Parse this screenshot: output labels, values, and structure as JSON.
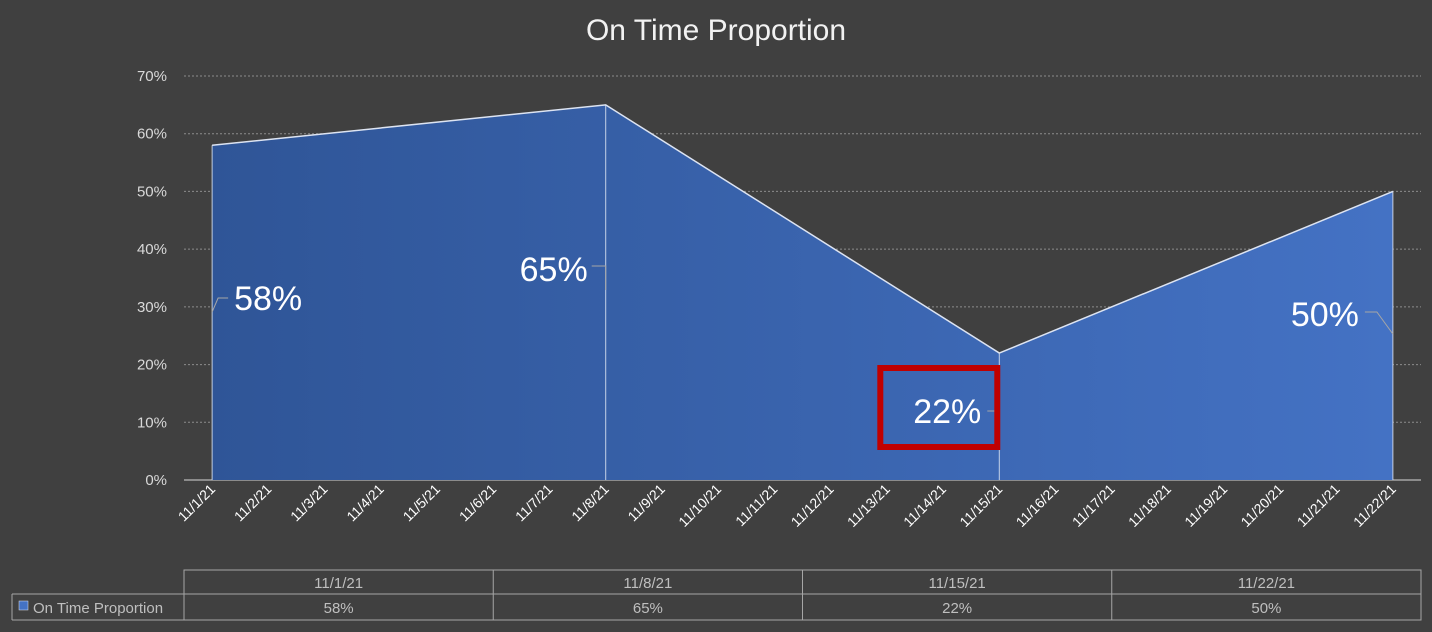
{
  "chart_data": {
    "type": "area",
    "title": "On Time Proportion",
    "xlabel": "",
    "ylabel": "",
    "x": [
      "11/1/21",
      "11/2/21",
      "11/3/21",
      "11/4/21",
      "11/5/21",
      "11/6/21",
      "11/7/21",
      "11/8/21",
      "11/9/21",
      "11/10/21",
      "11/11/21",
      "11/12/21",
      "11/13/21",
      "11/14/21",
      "11/15/21",
      "11/16/21",
      "11/17/21",
      "11/18/21",
      "11/19/21",
      "11/20/21",
      "11/21/21",
      "11/22/21"
    ],
    "series": [
      {
        "name": "On Time Proportion",
        "points": [
          {
            "x": "11/1/21",
            "y": 0.58,
            "label": "58%"
          },
          {
            "x": "11/8/21",
            "y": 0.65,
            "label": "65%"
          },
          {
            "x": "11/15/21",
            "y": 0.22,
            "label": "22%"
          },
          {
            "x": "11/22/21",
            "y": 0.5,
            "label": "50%"
          }
        ]
      }
    ],
    "y_ticks": [
      "0%",
      "10%",
      "20%",
      "30%",
      "40%",
      "50%",
      "60%",
      "70%"
    ],
    "ylim": [
      0,
      0.7
    ],
    "grid": true,
    "highlighted_point": "11/15/21",
    "data_table": {
      "headers": [
        "11/1/21",
        "11/8/21",
        "11/15/21",
        "11/22/21"
      ],
      "rows": [
        {
          "series": "On Time Proportion",
          "values": [
            "58%",
            "65%",
            "22%",
            "50%"
          ]
        }
      ]
    }
  },
  "colors": {
    "background": "#404040",
    "area_fill_start": "#2f5597",
    "area_fill_end": "#4472c4",
    "line": "#dde4f2",
    "grid": "#8c8c8c",
    "highlight": "#c00000"
  }
}
